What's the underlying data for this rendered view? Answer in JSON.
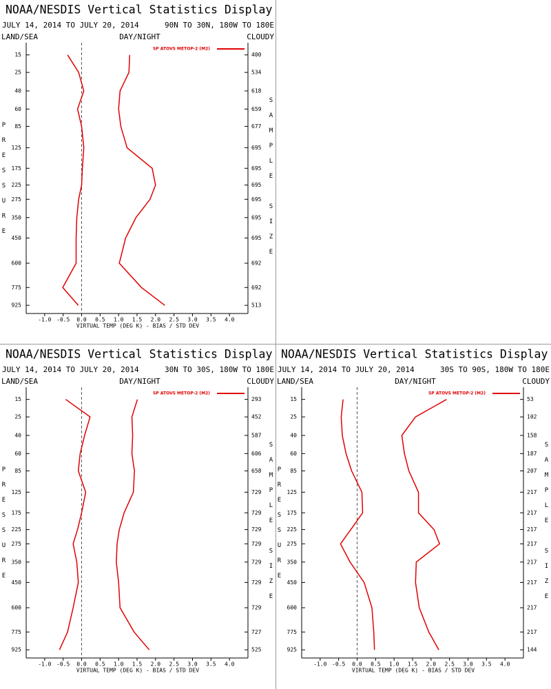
{
  "chart_data": [
    {
      "type": "line",
      "title": "NOAA/NESDIS Vertical Statistics Display",
      "period": "JULY 14, 2014 TO JULY 20, 2014",
      "region": "90N TO 30N, 180W TO 180E",
      "filters": [
        "LAND/SEA",
        "DAY/NIGHT",
        "CLOUDY"
      ],
      "ylabel": "PRESSURE",
      "y2label": "SAMPLE SIZE",
      "xlabel": "VIRTUAL TEMP (DEG K) - BIAS / STD DEV",
      "y": [
        15,
        25,
        40,
        60,
        85,
        125,
        175,
        225,
        275,
        350,
        450,
        600,
        775,
        925
      ],
      "sample_size": [
        400,
        534,
        618,
        659,
        677,
        695,
        695,
        695,
        695,
        695,
        695,
        692,
        692,
        513
      ],
      "series": [
        {
          "name": "SP ATOVS METOP-2 (M2)",
          "color": "#e00000",
          "bias": [
            -0.38,
            -0.08,
            0.06,
            -0.11,
            0,
            0.06,
            0.02,
            0,
            -0.08,
            -0.13,
            -0.15,
            -0.15,
            -0.51,
            -0.09
          ],
          "std_dev": [
            1.3,
            1.28,
            1.04,
            1.0,
            1.06,
            1.23,
            1.91,
            2.0,
            1.85,
            1.47,
            1.19,
            1.02,
            1.62,
            2.25
          ]
        }
      ],
      "xlim": [
        -1.5,
        4.5
      ],
      "ylim": [
        1000,
        10
      ],
      "xticks": [
        {
          "value": -1,
          "label": "-1.0"
        },
        -0.5,
        {
          "value": 0,
          "label": "0.0"
        },
        0.5,
        {
          "value": 1,
          "label": "1.0"
        },
        1.5,
        {
          "value": 2,
          "label": "2.0"
        },
        2.5,
        {
          "value": 3,
          "label": "3.0"
        },
        3.5,
        {
          "value": 4,
          "label": "4.0"
        }
      ],
      "yticks": [
        15,
        25,
        40,
        60,
        85,
        125,
        175,
        225,
        275,
        350,
        450,
        600,
        775,
        925
      ]
    },
    {
      "type": "line",
      "title": "NOAA/NESDIS Vertical Statistics Display",
      "period": "JULY 14, 2014 TO JULY 20, 2014",
      "region": "30N TO 30S, 180W TO 180E",
      "filters": [
        "LAND/SEA",
        "DAY/NIGHT",
        "CLOUDY"
      ],
      "ylabel": "PRESSURE",
      "y2label": "SAMPLE SIZE",
      "xlabel": "VIRTUAL TEMP (DEG K) - BIAS / STD DEV",
      "y": [
        15,
        25,
        40,
        60,
        85,
        125,
        175,
        225,
        275,
        350,
        450,
        600,
        775,
        925
      ],
      "sample_size": [
        293,
        452,
        587,
        606,
        658,
        729,
        729,
        729,
        729,
        729,
        729,
        729,
        727,
        525
      ],
      "series": [
        {
          "name": "SP ATOVS METOP-2 (M2)",
          "color": "#e00000",
          "bias": [
            -0.43,
            0.23,
            0.08,
            -0.04,
            -0.09,
            0.11,
            0,
            -0.11,
            -0.23,
            -0.13,
            -0.09,
            -0.23,
            -0.38,
            -0.6
          ],
          "std_dev": [
            1.51,
            1.36,
            1.38,
            1.36,
            1.43,
            1.4,
            1.15,
            1.02,
            0.96,
            0.94,
            1.0,
            1.04,
            1.42,
            1.83
          ]
        }
      ],
      "xlim": [
        -1.5,
        4.5
      ],
      "ylim": [
        1000,
        10
      ],
      "xticks": [
        {
          "value": -1,
          "label": "-1.0"
        },
        -0.5,
        {
          "value": 0,
          "label": "0.0"
        },
        0.5,
        {
          "value": 1,
          "label": "1.0"
        },
        1.5,
        {
          "value": 2,
          "label": "2.0"
        },
        2.5,
        {
          "value": 3,
          "label": "3.0"
        },
        3.5,
        {
          "value": 4,
          "label": "4.0"
        }
      ],
      "yticks": [
        15,
        25,
        40,
        60,
        85,
        125,
        175,
        225,
        275,
        350,
        450,
        600,
        775,
        925
      ]
    },
    {
      "type": "line",
      "title": "NOAA/NESDIS Vertical Statistics Display",
      "period": "JULY 14, 2014 TO JULY 20, 2014",
      "region": "30S TO 90S, 180W TO 180E",
      "filters": [
        "LAND/SEA",
        "DAY/NIGHT",
        "CLOUDY"
      ],
      "ylabel": "PRESSURE",
      "y2label": "SAMPLE SIZE",
      "xlabel": "VIRTUAL TEMP (DEG K) - BIAS / STD DEV",
      "y": [
        15,
        25,
        40,
        60,
        85,
        125,
        175,
        225,
        275,
        350,
        450,
        600,
        775,
        925
      ],
      "sample_size": [
        53,
        102,
        158,
        187,
        207,
        217,
        217,
        217,
        217,
        217,
        217,
        217,
        217,
        144
      ],
      "series": [
        {
          "name": "SP ATOVS METOP-2 (M2)",
          "color": "#e00000",
          "bias": [
            -0.38,
            -0.43,
            -0.4,
            -0.3,
            -0.15,
            0.13,
            0.15,
            -0.17,
            -0.45,
            -0.19,
            0.19,
            0.4,
            0.45,
            0.47
          ],
          "std_dev": [
            2.42,
            1.58,
            1.21,
            1.28,
            1.4,
            1.66,
            1.66,
            2.08,
            2.23,
            1.6,
            1.58,
            1.68,
            1.94,
            2.21
          ]
        }
      ],
      "xlim": [
        -1.5,
        4.5
      ],
      "ylim": [
        1000,
        10
      ],
      "xticks": [
        {
          "value": -1,
          "label": "-1.0"
        },
        -0.5,
        {
          "value": 0,
          "label": "0.0"
        },
        0.5,
        {
          "value": 1,
          "label": "1.0"
        },
        1.5,
        {
          "value": 2,
          "label": "2.0"
        },
        2.5,
        {
          "value": 3,
          "label": "3.0"
        },
        3.5,
        {
          "value": 4,
          "label": "4.0"
        }
      ],
      "yticks": [
        15,
        25,
        40,
        60,
        85,
        125,
        175,
        225,
        275,
        350,
        450,
        600,
        775,
        925
      ]
    }
  ]
}
